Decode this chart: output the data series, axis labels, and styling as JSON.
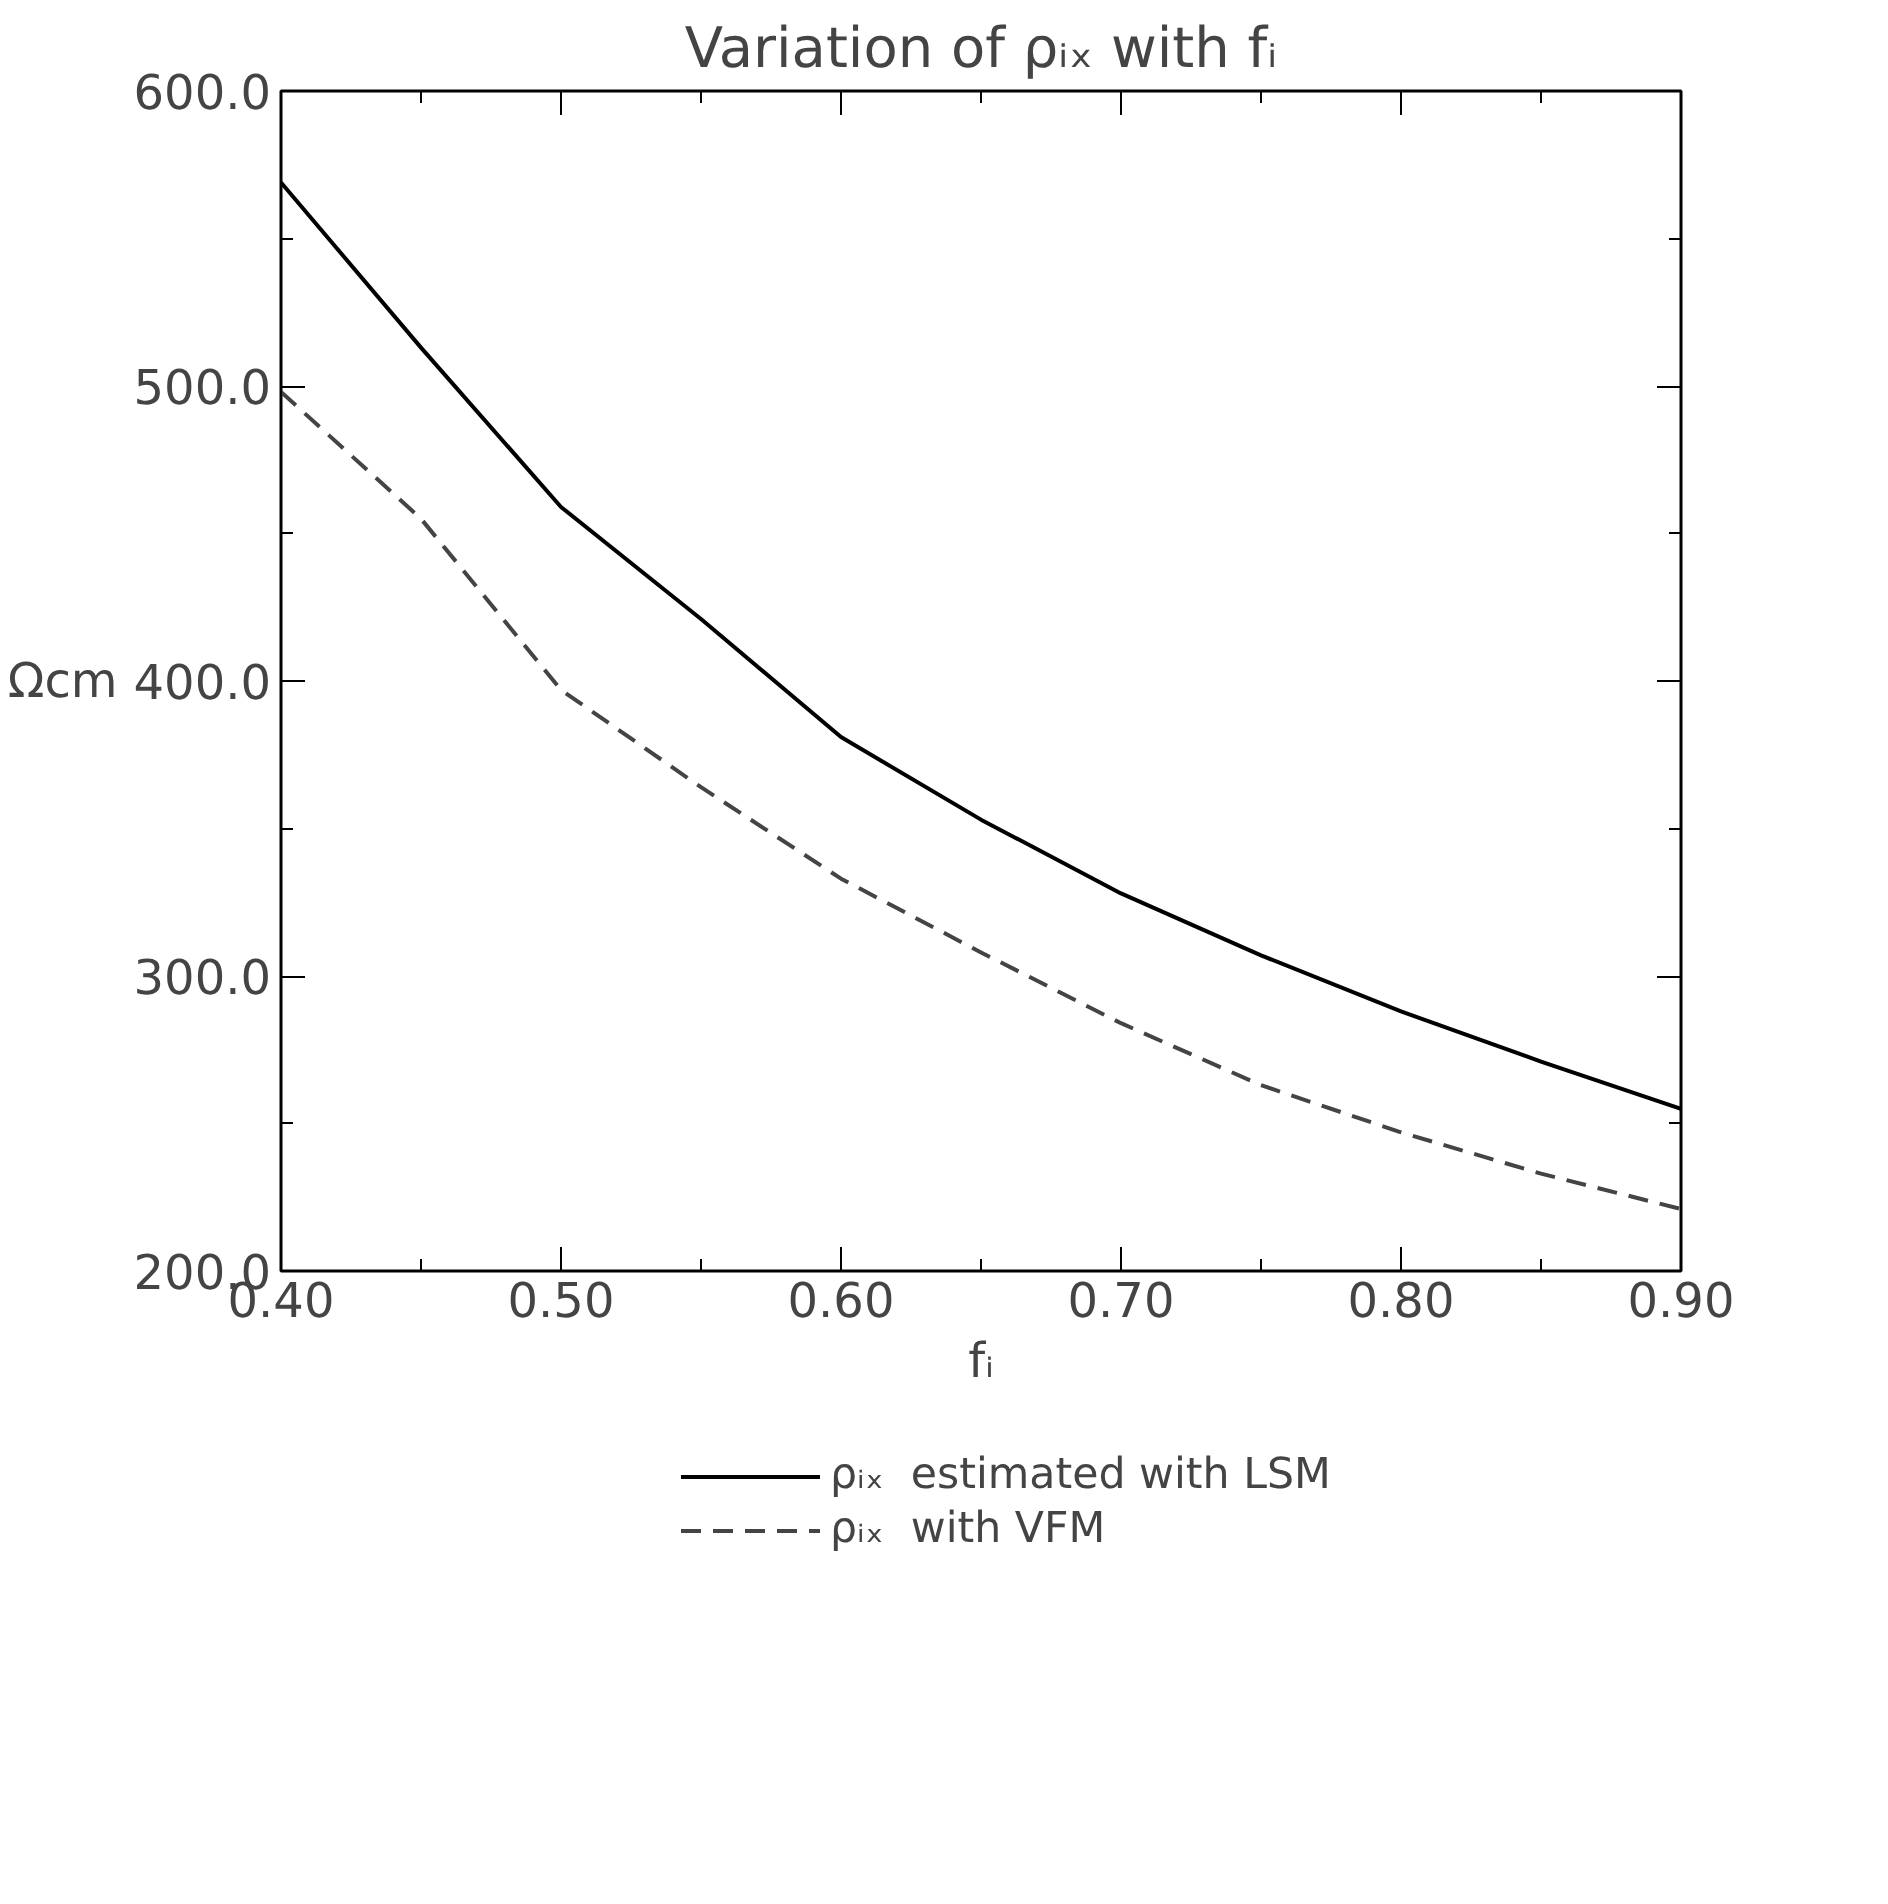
{
  "chart_data": {
    "type": "line",
    "title": "Variation of ρᵢₓ with fᵢ",
    "xlabel": "fᵢ",
    "ylabel": "Ωcm",
    "x": [
      0.4,
      0.45,
      0.5,
      0.55,
      0.6,
      0.65,
      0.7,
      0.75,
      0.8,
      0.85,
      0.9
    ],
    "series": [
      {
        "name": "ρᵢₓ  estimated with LSM",
        "color": "#000000",
        "line_style": "solid",
        "values": [
          569,
          513,
          459,
          421,
          381,
          353,
          328,
          307,
          288,
          271,
          255
        ]
      },
      {
        "name": "ρᵢₓ  with VFM",
        "color": "#444444",
        "line_style": "dashed",
        "values": [
          498,
          455,
          397,
          364,
          333,
          308,
          284,
          263,
          247,
          233,
          221
        ]
      }
    ],
    "xlim": [
      0.4,
      0.9
    ],
    "xticks": [
      {
        "value": 0.4,
        "label": "0.40"
      },
      {
        "value": 0.45,
        "label": null
      },
      {
        "value": 0.5,
        "label": "0.50"
      },
      {
        "value": 0.55,
        "label": null
      },
      {
        "value": 0.6,
        "label": "0.60"
      },
      {
        "value": 0.65,
        "label": null
      },
      {
        "value": 0.7,
        "label": "0.70"
      },
      {
        "value": 0.75,
        "label": null
      },
      {
        "value": 0.8,
        "label": "0.80"
      },
      {
        "value": 0.85,
        "label": null
      },
      {
        "value": 0.9,
        "label": "0.90"
      }
    ],
    "ylim": [
      200,
      600
    ],
    "yticks": [
      {
        "value": 200,
        "label": "200.0"
      },
      {
        "value": 250,
        "label": null
      },
      {
        "value": 300,
        "label": "300.0"
      },
      {
        "value": 350,
        "label": null
      },
      {
        "value": 400,
        "label": "400.0"
      },
      {
        "value": 450,
        "label": null
      },
      {
        "value": 500,
        "label": "500.0"
      },
      {
        "value": 550,
        "label": null
      },
      {
        "value": 600,
        "label": "600.0"
      }
    ],
    "legend": "bottom",
    "grid": false
  }
}
